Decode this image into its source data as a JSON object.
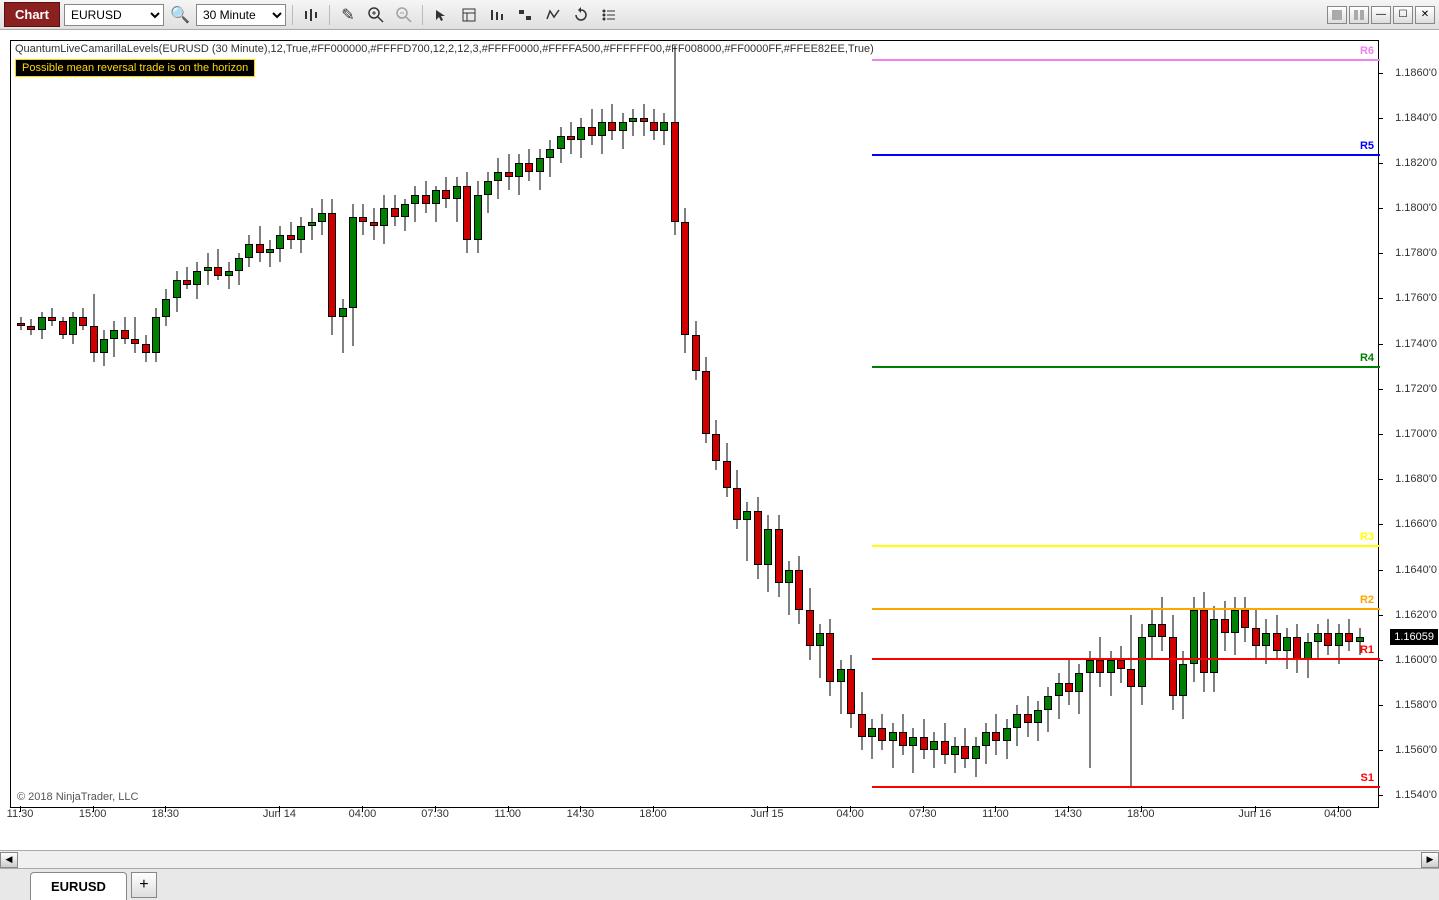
{
  "toolbar": {
    "chart_label": "Chart",
    "instrument": "EURUSD",
    "timeframe": "30 Minute"
  },
  "indicator_text": "QuantumLiveCamarillaLevels(EURUSD (30 Minute),12,True,#FF000000,#FFFFD700,12,2,12,3,#FFFF0000,#FFFFA500,#FFFFFF00,#FF008000,#FF0000FF,#FFEE82EE,True)",
  "alert_text": "Possible mean reversal trade is on the horizon",
  "copyright": "© 2018 NinjaTrader, LLC",
  "current_price": "1.16059",
  "tab_label": "EURUSD",
  "chart": {
    "background": "#ffffff",
    "y_min": 1.153,
    "y_max": 1.187,
    "y_ticks": [
      {
        "v": 1.154,
        "label": "1.1540'0"
      },
      {
        "v": 1.156,
        "label": "1.1560'0"
      },
      {
        "v": 1.158,
        "label": "1.1580'0"
      },
      {
        "v": 1.16,
        "label": "1.1600'0"
      },
      {
        "v": 1.162,
        "label": "1.1620'0"
      },
      {
        "v": 1.164,
        "label": "1.1640'0"
      },
      {
        "v": 1.166,
        "label": "1.1660'0"
      },
      {
        "v": 1.168,
        "label": "1.1680'0"
      },
      {
        "v": 1.17,
        "label": "1.1700'0"
      },
      {
        "v": 1.172,
        "label": "1.1720'0"
      },
      {
        "v": 1.174,
        "label": "1.1740'0"
      },
      {
        "v": 1.176,
        "label": "1.1760'0"
      },
      {
        "v": 1.178,
        "label": "1.1780'0"
      },
      {
        "v": 1.18,
        "label": "1.1800'0"
      },
      {
        "v": 1.182,
        "label": "1.1820'0"
      },
      {
        "v": 1.184,
        "label": "1.1840'0"
      },
      {
        "v": 1.186,
        "label": "1.1860'0"
      }
    ],
    "x_ticks": [
      {
        "i": 0,
        "label": "11:30"
      },
      {
        "i": 7,
        "label": "15:00"
      },
      {
        "i": 14,
        "label": "18:30"
      },
      {
        "i": 25,
        "label": "Jun 14"
      },
      {
        "i": 33,
        "label": "04:00"
      },
      {
        "i": 40,
        "label": "07:30"
      },
      {
        "i": 47,
        "label": "11:00"
      },
      {
        "i": 54,
        "label": "14:30"
      },
      {
        "i": 61,
        "label": "18:00"
      },
      {
        "i": 72,
        "label": "Jun 15"
      },
      {
        "i": 80,
        "label": "04:00"
      },
      {
        "i": 87,
        "label": "07:30"
      },
      {
        "i": 94,
        "label": "11:00"
      },
      {
        "i": 101,
        "label": "14:30"
      },
      {
        "i": 108,
        "label": "18:00"
      },
      {
        "i": 119,
        "label": "Jun 16"
      },
      {
        "i": 127,
        "label": "04:00"
      }
    ],
    "level_start_i": 82,
    "levels": [
      {
        "label": "R6",
        "value": 1.1862,
        "color": "#ee82ee"
      },
      {
        "label": "R5",
        "value": 1.182,
        "color": "#0000ff"
      },
      {
        "label": "R4",
        "value": 1.1726,
        "color": "#008000"
      },
      {
        "label": "R3",
        "value": 1.1647,
        "color": "#ffff00"
      },
      {
        "label": "R2",
        "value": 1.1619,
        "color": "#ffa500"
      },
      {
        "label": "R1",
        "value": 1.1597,
        "color": "#ff0000"
      },
      {
        "label": "S1",
        "value": 1.154,
        "color": "#ff0000"
      }
    ],
    "candle_width": 8,
    "up_color": "#008000",
    "down_color": "#d00000",
    "candles": [
      {
        "o": 1.1745,
        "h": 1.1748,
        "l": 1.1742,
        "c": 1.1744
      },
      {
        "o": 1.1744,
        "h": 1.1747,
        "l": 1.174,
        "c": 1.1742
      },
      {
        "o": 1.1742,
        "h": 1.175,
        "l": 1.1738,
        "c": 1.1748
      },
      {
        "o": 1.1748,
        "h": 1.1752,
        "l": 1.1744,
        "c": 1.1746
      },
      {
        "o": 1.1746,
        "h": 1.1748,
        "l": 1.1738,
        "c": 1.174
      },
      {
        "o": 1.174,
        "h": 1.175,
        "l": 1.1736,
        "c": 1.1748
      },
      {
        "o": 1.1748,
        "h": 1.1752,
        "l": 1.1742,
        "c": 1.1744
      },
      {
        "o": 1.1744,
        "h": 1.1758,
        "l": 1.1728,
        "c": 1.1732
      },
      {
        "o": 1.1732,
        "h": 1.1742,
        "l": 1.1726,
        "c": 1.1738
      },
      {
        "o": 1.1738,
        "h": 1.1746,
        "l": 1.173,
        "c": 1.1742
      },
      {
        "o": 1.1742,
        "h": 1.1748,
        "l": 1.1736,
        "c": 1.1738
      },
      {
        "o": 1.1738,
        "h": 1.1748,
        "l": 1.1732,
        "c": 1.1736
      },
      {
        "o": 1.1736,
        "h": 1.174,
        "l": 1.1728,
        "c": 1.1732
      },
      {
        "o": 1.1732,
        "h": 1.1752,
        "l": 1.1728,
        "c": 1.1748
      },
      {
        "o": 1.1748,
        "h": 1.176,
        "l": 1.1744,
        "c": 1.1756
      },
      {
        "o": 1.1756,
        "h": 1.1768,
        "l": 1.175,
        "c": 1.1764
      },
      {
        "o": 1.1764,
        "h": 1.177,
        "l": 1.176,
        "c": 1.1762
      },
      {
        "o": 1.1762,
        "h": 1.1772,
        "l": 1.1756,
        "c": 1.1768
      },
      {
        "o": 1.1768,
        "h": 1.1776,
        "l": 1.1762,
        "c": 1.177
      },
      {
        "o": 1.177,
        "h": 1.1778,
        "l": 1.1764,
        "c": 1.1766
      },
      {
        "o": 1.1766,
        "h": 1.1772,
        "l": 1.176,
        "c": 1.1768
      },
      {
        "o": 1.1768,
        "h": 1.1776,
        "l": 1.1762,
        "c": 1.1774
      },
      {
        "o": 1.1774,
        "h": 1.1784,
        "l": 1.177,
        "c": 1.178
      },
      {
        "o": 1.178,
        "h": 1.1788,
        "l": 1.1772,
        "c": 1.1776
      },
      {
        "o": 1.1776,
        "h": 1.1782,
        "l": 1.177,
        "c": 1.1778
      },
      {
        "o": 1.1778,
        "h": 1.1788,
        "l": 1.1772,
        "c": 1.1784
      },
      {
        "o": 1.1784,
        "h": 1.179,
        "l": 1.1778,
        "c": 1.1782
      },
      {
        "o": 1.1782,
        "h": 1.1792,
        "l": 1.1776,
        "c": 1.1788
      },
      {
        "o": 1.1788,
        "h": 1.1796,
        "l": 1.1782,
        "c": 1.179
      },
      {
        "o": 1.179,
        "h": 1.18,
        "l": 1.1784,
        "c": 1.1794
      },
      {
        "o": 1.1794,
        "h": 1.18,
        "l": 1.174,
        "c": 1.1748
      },
      {
        "o": 1.1748,
        "h": 1.1756,
        "l": 1.1732,
        "c": 1.1752
      },
      {
        "o": 1.1752,
        "h": 1.1798,
        "l": 1.1735,
        "c": 1.1792
      },
      {
        "o": 1.1792,
        "h": 1.1798,
        "l": 1.1784,
        "c": 1.179
      },
      {
        "o": 1.179,
        "h": 1.1796,
        "l": 1.1782,
        "c": 1.1788
      },
      {
        "o": 1.1788,
        "h": 1.1802,
        "l": 1.178,
        "c": 1.1796
      },
      {
        "o": 1.1796,
        "h": 1.1802,
        "l": 1.1788,
        "c": 1.1792
      },
      {
        "o": 1.1792,
        "h": 1.18,
        "l": 1.1786,
        "c": 1.1798
      },
      {
        "o": 1.1798,
        "h": 1.1806,
        "l": 1.179,
        "c": 1.1802
      },
      {
        "o": 1.1802,
        "h": 1.1808,
        "l": 1.1794,
        "c": 1.1798
      },
      {
        "o": 1.1798,
        "h": 1.1806,
        "l": 1.179,
        "c": 1.1804
      },
      {
        "o": 1.1804,
        "h": 1.181,
        "l": 1.1796,
        "c": 1.18
      },
      {
        "o": 1.18,
        "h": 1.181,
        "l": 1.179,
        "c": 1.1806
      },
      {
        "o": 1.1806,
        "h": 1.1812,
        "l": 1.1776,
        "c": 1.1782
      },
      {
        "o": 1.1782,
        "h": 1.1808,
        "l": 1.1776,
        "c": 1.1802
      },
      {
        "o": 1.1802,
        "h": 1.1812,
        "l": 1.1794,
        "c": 1.1808
      },
      {
        "o": 1.1808,
        "h": 1.1818,
        "l": 1.18,
        "c": 1.1812
      },
      {
        "o": 1.1812,
        "h": 1.182,
        "l": 1.1804,
        "c": 1.181
      },
      {
        "o": 1.181,
        "h": 1.182,
        "l": 1.1802,
        "c": 1.1816
      },
      {
        "o": 1.1816,
        "h": 1.1822,
        "l": 1.1808,
        "c": 1.1812
      },
      {
        "o": 1.1812,
        "h": 1.1822,
        "l": 1.1804,
        "c": 1.1818
      },
      {
        "o": 1.1818,
        "h": 1.1826,
        "l": 1.181,
        "c": 1.1822
      },
      {
        "o": 1.1822,
        "h": 1.1832,
        "l": 1.1816,
        "c": 1.1828
      },
      {
        "o": 1.1828,
        "h": 1.1834,
        "l": 1.182,
        "c": 1.1826
      },
      {
        "o": 1.1826,
        "h": 1.1836,
        "l": 1.1818,
        "c": 1.1832
      },
      {
        "o": 1.1832,
        "h": 1.184,
        "l": 1.1824,
        "c": 1.1828
      },
      {
        "o": 1.1828,
        "h": 1.184,
        "l": 1.182,
        "c": 1.1834
      },
      {
        "o": 1.1834,
        "h": 1.1842,
        "l": 1.1826,
        "c": 1.183
      },
      {
        "o": 1.183,
        "h": 1.1838,
        "l": 1.1822,
        "c": 1.1834
      },
      {
        "o": 1.1834,
        "h": 1.184,
        "l": 1.1828,
        "c": 1.1836
      },
      {
        "o": 1.1836,
        "h": 1.1842,
        "l": 1.1828,
        "c": 1.1834
      },
      {
        "o": 1.1834,
        "h": 1.184,
        "l": 1.1826,
        "c": 1.183
      },
      {
        "o": 1.183,
        "h": 1.1838,
        "l": 1.1824,
        "c": 1.1834
      },
      {
        "o": 1.1834,
        "h": 1.1868,
        "l": 1.1784,
        "c": 1.179
      },
      {
        "o": 1.179,
        "h": 1.1796,
        "l": 1.1732,
        "c": 1.174
      },
      {
        "o": 1.174,
        "h": 1.1746,
        "l": 1.172,
        "c": 1.1724
      },
      {
        "o": 1.1724,
        "h": 1.173,
        "l": 1.1692,
        "c": 1.1696
      },
      {
        "o": 1.1696,
        "h": 1.1702,
        "l": 1.168,
        "c": 1.1684
      },
      {
        "o": 1.1684,
        "h": 1.1692,
        "l": 1.1668,
        "c": 1.1672
      },
      {
        "o": 1.1672,
        "h": 1.168,
        "l": 1.1654,
        "c": 1.1658
      },
      {
        "o": 1.1658,
        "h": 1.1666,
        "l": 1.164,
        "c": 1.1662
      },
      {
        "o": 1.1662,
        "h": 1.1668,
        "l": 1.1632,
        "c": 1.1638
      },
      {
        "o": 1.1638,
        "h": 1.166,
        "l": 1.1626,
        "c": 1.1654
      },
      {
        "o": 1.1654,
        "h": 1.166,
        "l": 1.1624,
        "c": 1.163
      },
      {
        "o": 1.163,
        "h": 1.164,
        "l": 1.1616,
        "c": 1.1636
      },
      {
        "o": 1.1636,
        "h": 1.1642,
        "l": 1.1612,
        "c": 1.1618
      },
      {
        "o": 1.1618,
        "h": 1.1628,
        "l": 1.1596,
        "c": 1.1602
      },
      {
        "o": 1.1602,
        "h": 1.1612,
        "l": 1.1588,
        "c": 1.1608
      },
      {
        "o": 1.1608,
        "h": 1.1614,
        "l": 1.158,
        "c": 1.1586
      },
      {
        "o": 1.1586,
        "h": 1.1596,
        "l": 1.1572,
        "c": 1.1592
      },
      {
        "o": 1.1592,
        "h": 1.1598,
        "l": 1.1566,
        "c": 1.1572
      },
      {
        "o": 1.1572,
        "h": 1.1582,
        "l": 1.1556,
        "c": 1.1562
      },
      {
        "o": 1.1562,
        "h": 1.157,
        "l": 1.1552,
        "c": 1.1566
      },
      {
        "o": 1.1566,
        "h": 1.1572,
        "l": 1.1556,
        "c": 1.156
      },
      {
        "o": 1.156,
        "h": 1.1568,
        "l": 1.1548,
        "c": 1.1564
      },
      {
        "o": 1.1564,
        "h": 1.1572,
        "l": 1.1554,
        "c": 1.1558
      },
      {
        "o": 1.1558,
        "h": 1.1566,
        "l": 1.1546,
        "c": 1.1562
      },
      {
        "o": 1.1562,
        "h": 1.157,
        "l": 1.1552,
        "c": 1.1556
      },
      {
        "o": 1.1556,
        "h": 1.1564,
        "l": 1.1548,
        "c": 1.156
      },
      {
        "o": 1.156,
        "h": 1.1568,
        "l": 1.155,
        "c": 1.1554
      },
      {
        "o": 1.1554,
        "h": 1.1562,
        "l": 1.1546,
        "c": 1.1558
      },
      {
        "o": 1.1558,
        "h": 1.1566,
        "l": 1.1548,
        "c": 1.1552
      },
      {
        "o": 1.1552,
        "h": 1.1562,
        "l": 1.1544,
        "c": 1.1558
      },
      {
        "o": 1.1558,
        "h": 1.1568,
        "l": 1.155,
        "c": 1.1564
      },
      {
        "o": 1.1564,
        "h": 1.1572,
        "l": 1.1554,
        "c": 1.156
      },
      {
        "o": 1.156,
        "h": 1.157,
        "l": 1.1552,
        "c": 1.1566
      },
      {
        "o": 1.1566,
        "h": 1.1576,
        "l": 1.1558,
        "c": 1.1572
      },
      {
        "o": 1.1572,
        "h": 1.158,
        "l": 1.1562,
        "c": 1.1568
      },
      {
        "o": 1.1568,
        "h": 1.1578,
        "l": 1.156,
        "c": 1.1574
      },
      {
        "o": 1.1574,
        "h": 1.1584,
        "l": 1.1564,
        "c": 1.158
      },
      {
        "o": 1.158,
        "h": 1.159,
        "l": 1.157,
        "c": 1.1586
      },
      {
        "o": 1.1586,
        "h": 1.1596,
        "l": 1.1576,
        "c": 1.1582
      },
      {
        "o": 1.1582,
        "h": 1.1594,
        "l": 1.1572,
        "c": 1.159
      },
      {
        "o": 1.159,
        "h": 1.16,
        "l": 1.1548,
        "c": 1.1596
      },
      {
        "o": 1.1596,
        "h": 1.1606,
        "l": 1.1584,
        "c": 1.159
      },
      {
        "o": 1.159,
        "h": 1.16,
        "l": 1.158,
        "c": 1.1596
      },
      {
        "o": 1.1596,
        "h": 1.1602,
        "l": 1.1586,
        "c": 1.1592
      },
      {
        "o": 1.1592,
        "h": 1.1616,
        "l": 1.154,
        "c": 1.1584
      },
      {
        "o": 1.1584,
        "h": 1.1612,
        "l": 1.1576,
        "c": 1.1606
      },
      {
        "o": 1.1606,
        "h": 1.1618,
        "l": 1.1596,
        "c": 1.1612
      },
      {
        "o": 1.1612,
        "h": 1.1624,
        "l": 1.16,
        "c": 1.1606
      },
      {
        "o": 1.1606,
        "h": 1.1616,
        "l": 1.1574,
        "c": 1.158
      },
      {
        "o": 1.158,
        "h": 1.16,
        "l": 1.157,
        "c": 1.1594
      },
      {
        "o": 1.1594,
        "h": 1.1624,
        "l": 1.1586,
        "c": 1.1618
      },
      {
        "o": 1.1618,
        "h": 1.1626,
        "l": 1.1582,
        "c": 1.159
      },
      {
        "o": 1.159,
        "h": 1.162,
        "l": 1.1582,
        "c": 1.1614
      },
      {
        "o": 1.1614,
        "h": 1.1622,
        "l": 1.16,
        "c": 1.1608
      },
      {
        "o": 1.1608,
        "h": 1.1624,
        "l": 1.1598,
        "c": 1.1618
      },
      {
        "o": 1.1618,
        "h": 1.1624,
        "l": 1.1604,
        "c": 1.161
      },
      {
        "o": 1.161,
        "h": 1.1618,
        "l": 1.1596,
        "c": 1.1602
      },
      {
        "o": 1.1602,
        "h": 1.1614,
        "l": 1.1594,
        "c": 1.1608
      },
      {
        "o": 1.1608,
        "h": 1.1616,
        "l": 1.1596,
        "c": 1.16
      },
      {
        "o": 1.16,
        "h": 1.161,
        "l": 1.1592,
        "c": 1.1606
      },
      {
        "o": 1.1606,
        "h": 1.1612,
        "l": 1.159,
        "c": 1.1596
      },
      {
        "o": 1.1596,
        "h": 1.1608,
        "l": 1.1588,
        "c": 1.1604
      },
      {
        "o": 1.1604,
        "h": 1.1612,
        "l": 1.1596,
        "c": 1.1608
      },
      {
        "o": 1.1608,
        "h": 1.1614,
        "l": 1.1598,
        "c": 1.1602
      },
      {
        "o": 1.1602,
        "h": 1.1612,
        "l": 1.1594,
        "c": 1.1608
      },
      {
        "o": 1.1608,
        "h": 1.1614,
        "l": 1.16,
        "c": 1.1604
      },
      {
        "o": 1.1604,
        "h": 1.161,
        "l": 1.1598,
        "c": 1.1606
      }
    ]
  }
}
